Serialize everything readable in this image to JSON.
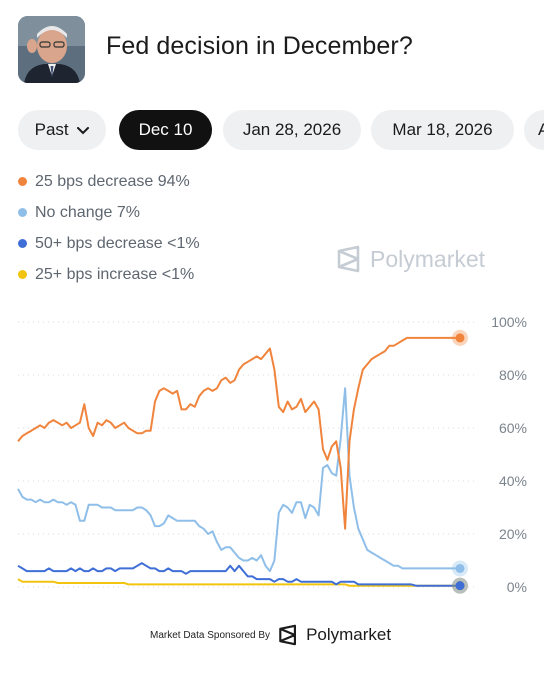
{
  "header": {
    "title": "Fed decision in December?"
  },
  "date_tabs": [
    {
      "label": "Past",
      "active": false,
      "has_chevron": true
    },
    {
      "label": "Dec 10",
      "active": true,
      "has_chevron": false
    },
    {
      "label": "Jan 28, 2026",
      "active": false,
      "has_chevron": false
    },
    {
      "label": "Mar 18, 2026",
      "active": false,
      "has_chevron": false
    },
    {
      "label": "A",
      "active": false,
      "has_chevron": false
    }
  ],
  "legend": [
    {
      "label": "25 bps decrease 94%",
      "color": "#f0843c"
    },
    {
      "label": "No change 7%",
      "color": "#8fbfe9"
    },
    {
      "label": "50+ bps decrease <1%",
      "color": "#3f6fd6"
    },
    {
      "label": "25+ bps increase <1%",
      "color": "#f1c40f"
    }
  ],
  "watermark": {
    "text": "Polymarket",
    "icon": "polymarket-logo-icon"
  },
  "footer": {
    "sponsor_text": "Market Data Sponsored By",
    "brand": "Polymarket",
    "icon": "polymarket-logo-icon"
  },
  "chart_data": {
    "type": "line",
    "ylim": [
      0,
      100
    ],
    "y_ticks": [
      "0%",
      "20%",
      "40%",
      "60%",
      "80%",
      "100%"
    ],
    "grid": true,
    "x": [
      0,
      1,
      2,
      3,
      4,
      5,
      6,
      7,
      8,
      9,
      10,
      11,
      12,
      13,
      14,
      15,
      16,
      17,
      18,
      19,
      20,
      21,
      22,
      23,
      24,
      25,
      26,
      27,
      28,
      29,
      30,
      31,
      32,
      33,
      34,
      35,
      36,
      37,
      38,
      39,
      40,
      41,
      42,
      43,
      44,
      45,
      46,
      47,
      48,
      49,
      50,
      51,
      52,
      53,
      54,
      55,
      56,
      57,
      58,
      59,
      60,
      61,
      62,
      63,
      64,
      65,
      66,
      67,
      68,
      69,
      70,
      71,
      72,
      73,
      74,
      75,
      76,
      77,
      78,
      79,
      80,
      81,
      82,
      83,
      84,
      85,
      86,
      87,
      88,
      89,
      90,
      91,
      92,
      93,
      94,
      95,
      96,
      97,
      98,
      99,
      100
    ],
    "series": [
      {
        "name": "25 bps decrease",
        "color": "#f0843c",
        "values": [
          55,
          57,
          58,
          59,
          60,
          61,
          60,
          62,
          63,
          62,
          61,
          62,
          60,
          61,
          62,
          69,
          60,
          57,
          62,
          61,
          63,
          62,
          60,
          61,
          62,
          60,
          59,
          58,
          58,
          59,
          59,
          70,
          74,
          75,
          74,
          73,
          74,
          67,
          67,
          69,
          68,
          72,
          74,
          75,
          74,
          75,
          78,
          79,
          77,
          78,
          82,
          84,
          85,
          86,
          87,
          86,
          88,
          90,
          82,
          68,
          66,
          70,
          67,
          68,
          71,
          66,
          68,
          70,
          67,
          52,
          48,
          53,
          55,
          45,
          22,
          55,
          67,
          75,
          82,
          84,
          86,
          87,
          88,
          89,
          91,
          91,
          92,
          93,
          94,
          94,
          94,
          94,
          94,
          94,
          94,
          94,
          94,
          94,
          94,
          94,
          94
        ]
      },
      {
        "name": "No change",
        "color": "#8fbfe9",
        "values": [
          37,
          34,
          33,
          33,
          32,
          33,
          32,
          32,
          33,
          32,
          32,
          31,
          32,
          31,
          25,
          25,
          31,
          31,
          31,
          30,
          30,
          30,
          29,
          29,
          29,
          29,
          29,
          30,
          30,
          29,
          27,
          23,
          23,
          24,
          27,
          26,
          25,
          25,
          25,
          25,
          25,
          23,
          22,
          20,
          21,
          17,
          14,
          15,
          15,
          13,
          11,
          10,
          10,
          11,
          10,
          12,
          8,
          6,
          10,
          28,
          31,
          30,
          28,
          32,
          32,
          26,
          31,
          30,
          27,
          45,
          46,
          43,
          42,
          56,
          75,
          42,
          30,
          22,
          18,
          14,
          13,
          12,
          11,
          10,
          9,
          8,
          8,
          7,
          7,
          7,
          7,
          7,
          7,
          7,
          7,
          7,
          7,
          7,
          7,
          7,
          7
        ]
      },
      {
        "name": "50+ bps decrease",
        "color": "#3f6fd6",
        "values": [
          8,
          7,
          6,
          6,
          6,
          6,
          6,
          7,
          6,
          6,
          6,
          6,
          7,
          6,
          7,
          6,
          6,
          7,
          6,
          6,
          7,
          7,
          6,
          7,
          7,
          7,
          7,
          8,
          9,
          8,
          7,
          7,
          6,
          6,
          7,
          6,
          6,
          6,
          5,
          6,
          6,
          6,
          6,
          6,
          6,
          6,
          6,
          6,
          8,
          6,
          8,
          6,
          4,
          4,
          3,
          3,
          3,
          3,
          2,
          3,
          3,
          2,
          2,
          3,
          2,
          2,
          2,
          2,
          2,
          2,
          2,
          2,
          1,
          2,
          2,
          2,
          2,
          1,
          1,
          1,
          1,
          1,
          1,
          1,
          1,
          1,
          1,
          1,
          1,
          1,
          0.5,
          0.5,
          0.5,
          0.5,
          0.5,
          0.5,
          0.5,
          0.5,
          0.5,
          0.5,
          0.5
        ]
      },
      {
        "name": "25+ bps increase",
        "color": "#f1c40f",
        "values": [
          3,
          2,
          2,
          2,
          2,
          2,
          2,
          2,
          2,
          1.5,
          1.5,
          1.5,
          1.5,
          1.5,
          1.5,
          1.5,
          1.5,
          1.5,
          1.5,
          1.5,
          1.5,
          1.5,
          1.5,
          1.5,
          1.5,
          1,
          1,
          1,
          1,
          1,
          1,
          1,
          1,
          1,
          1,
          1,
          1,
          1,
          1,
          1,
          1,
          1,
          1,
          1,
          1,
          1,
          1,
          1,
          1,
          1,
          1,
          1,
          1,
          1,
          1,
          1,
          1,
          1,
          1,
          1,
          1,
          1,
          1,
          1,
          1,
          1,
          1,
          1,
          1,
          1,
          1,
          1,
          1,
          1,
          1,
          0.5,
          0.5,
          0.5,
          0.5,
          0.5,
          0.5,
          0.5,
          0.5,
          0.5,
          0.5,
          0.5,
          0.5,
          0.5,
          0.5,
          0.5,
          0.5,
          0.5,
          0.5,
          0.5,
          0.5,
          0.5,
          0.5,
          0.5,
          0.5,
          0.5,
          0.5
        ]
      }
    ]
  }
}
